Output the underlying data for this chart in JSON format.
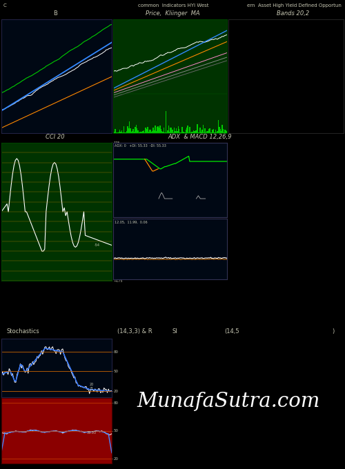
{
  "bg_color": "#000000",
  "panel1_bg": "#000814",
  "panel2_bg": "#003300",
  "panel3_bg": "#000000",
  "panel4_bg": "#003300",
  "panel5_bg": "#000814",
  "panel6_bg": "#8B0000",
  "header_text": "common  Indicators HYI West",
  "header_right": "ern  Asset High Yield Defined Opportun",
  "header_left": "C",
  "p1_title": "B",
  "p2_title": "Price,  Kliinger  MA",
  "p3_title": "Bands 20,2",
  "p4_title": "CCI 20",
  "p5_title": "ADX  & MACD 12,26,9",
  "stoch_title": "Stochastics",
  "stoch_params": "(14,3,3) & R",
  "si_title": "SI",
  "si_params": "(14,5",
  "si_end": ")",
  "watermark": "MunafaSutra.com",
  "font_color": "#c8c8b4",
  "font_size": 6
}
